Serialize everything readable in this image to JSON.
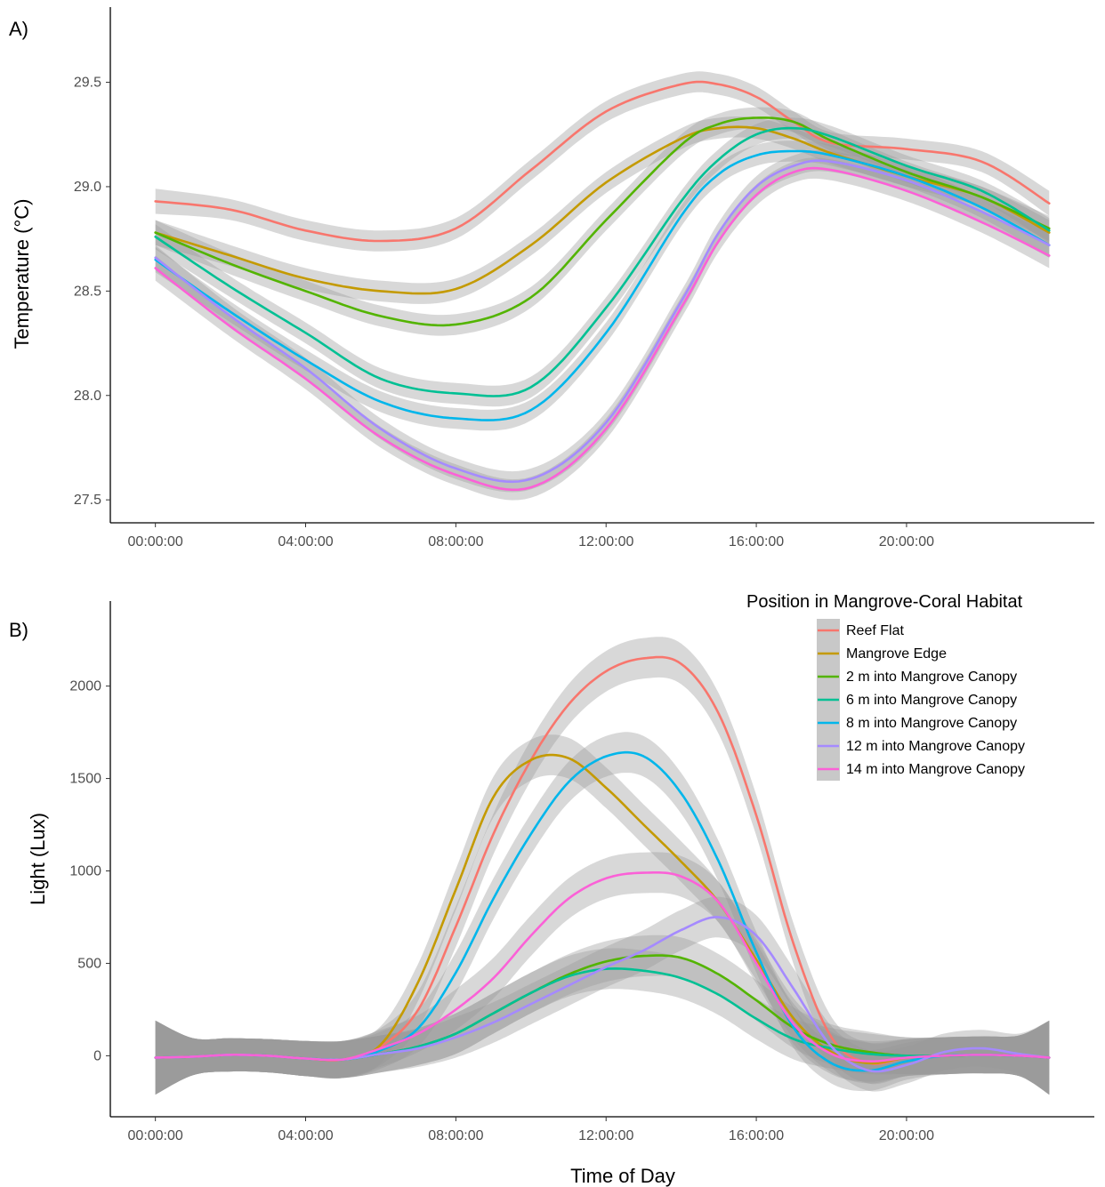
{
  "figure": {
    "x_title": "Time of Day",
    "legend": {
      "title": "Position in Mangrove-Coral Habitat",
      "placement": "top-right",
      "entries": [
        {
          "name": "Reef Flat",
          "color": "#F8766D"
        },
        {
          "name": "Mangrove Edge",
          "color": "#C49A00"
        },
        {
          "name": "2 m into Mangrove Canopy",
          "color": "#53B400"
        },
        {
          "name": "6 m into Mangrove Canopy",
          "color": "#00C094"
        },
        {
          "name": "8 m into Mangrove Canopy",
          "color": "#00B6EB"
        },
        {
          "name": "12 m into Mangrove Canopy",
          "color": "#A58AFF"
        },
        {
          "name": "14 m into Mangrove Canopy",
          "color": "#FB61D7"
        }
      ]
    }
  },
  "chart_data": [
    {
      "type": "line",
      "panel_label": "A)",
      "ylabel": "Temperature (°C)",
      "xlabel": "",
      "x_ticks": [
        "00:00:00",
        "04:00:00",
        "08:00:00",
        "12:00:00",
        "16:00:00",
        "20:00:00"
      ],
      "x_tick_hours": [
        0,
        4,
        8,
        12,
        16,
        20
      ],
      "y_ticks": [
        "27.5",
        "28.0",
        "28.5",
        "29.0",
        "29.5"
      ],
      "xlim": [
        -1.2,
        25.0
      ],
      "ylim": [
        27.39,
        29.86
      ],
      "grid": false,
      "x": [
        0,
        2,
        4,
        6,
        8,
        10,
        12,
        14,
        15,
        16,
        17,
        18,
        20,
        22,
        23.8
      ],
      "band_halfwidth": [
        0.06,
        0.05,
        0.05,
        0.05,
        0.05,
        0.05,
        0.05,
        0.05,
        0.05,
        0.05,
        0.05,
        0.05,
        0.05,
        0.05,
        0.06
      ],
      "series": [
        {
          "name": "Reef Flat",
          "color": "#F8766D",
          "values": [
            28.93,
            28.89,
            28.79,
            28.74,
            28.8,
            29.08,
            29.36,
            29.49,
            29.49,
            29.43,
            29.31,
            29.21,
            29.18,
            29.12,
            28.92
          ]
        },
        {
          "name": "Mangrove Edge",
          "color": "#C49A00",
          "values": [
            28.78,
            28.67,
            28.56,
            28.5,
            28.51,
            28.72,
            29.02,
            29.23,
            29.28,
            29.28,
            29.23,
            29.16,
            29.05,
            28.95,
            28.78
          ]
        },
        {
          "name": "2 m into Mangrove Canopy",
          "color": "#53B400",
          "values": [
            28.78,
            28.63,
            28.5,
            28.38,
            28.34,
            28.47,
            28.84,
            29.2,
            29.3,
            29.33,
            29.31,
            29.22,
            29.07,
            28.95,
            28.8
          ]
        },
        {
          "name": "6 m into Mangrove Canopy",
          "color": "#00C094",
          "values": [
            28.76,
            28.52,
            28.3,
            28.08,
            28.01,
            28.04,
            28.42,
            28.93,
            29.13,
            29.25,
            29.28,
            29.24,
            29.1,
            28.98,
            28.79
          ]
        },
        {
          "name": "8 m into Mangrove Canopy",
          "color": "#00B6EB",
          "values": [
            28.65,
            28.4,
            28.17,
            27.97,
            27.89,
            27.93,
            28.3,
            28.86,
            29.06,
            29.15,
            29.17,
            29.15,
            29.05,
            28.9,
            28.72
          ]
        },
        {
          "name": "12 m into Mangrove Canopy",
          "color": "#A58AFF",
          "values": [
            28.66,
            28.38,
            28.13,
            27.84,
            27.65,
            27.6,
            27.87,
            28.45,
            28.78,
            29.0,
            29.1,
            29.12,
            29.03,
            28.88,
            28.72
          ]
        },
        {
          "name": "14 m into Mangrove Canopy",
          "color": "#FB61D7",
          "values": [
            28.61,
            28.33,
            28.08,
            27.8,
            27.62,
            27.56,
            27.84,
            28.42,
            28.74,
            28.96,
            29.07,
            29.08,
            28.98,
            28.83,
            28.67
          ]
        }
      ]
    },
    {
      "type": "line",
      "panel_label": "B)",
      "ylabel": "Light (Lux)",
      "xlabel": "Time of Day",
      "x_ticks": [
        "00:00:00",
        "04:00:00",
        "08:00:00",
        "12:00:00",
        "16:00:00",
        "20:00:00"
      ],
      "x_tick_hours": [
        0,
        4,
        8,
        12,
        16,
        20
      ],
      "y_ticks": [
        "0",
        "500",
        "1000",
        "1500",
        "2000"
      ],
      "xlim": [
        -1.2,
        25.0
      ],
      "ylim": [
        -330,
        2460
      ],
      "grid": false,
      "x": [
        0,
        1,
        2,
        3,
        4,
        5,
        6,
        7,
        8,
        9,
        10,
        11,
        12,
        13,
        14,
        15,
        16,
        17,
        18,
        19,
        20,
        21,
        22,
        23,
        23.8
      ],
      "band_halfwidth": [
        200,
        100,
        90,
        90,
        95,
        100,
        100,
        100,
        110,
        110,
        110,
        110,
        110,
        110,
        110,
        110,
        110,
        110,
        110,
        110,
        100,
        100,
        100,
        110,
        200
      ],
      "series": [
        {
          "name": "Reef Flat",
          "color": "#F8766D",
          "values": [
            -10,
            -5,
            5,
            0,
            -15,
            -20,
            50,
            250,
            700,
            1200,
            1600,
            1900,
            2080,
            2150,
            2120,
            1850,
            1300,
            600,
            100,
            -40,
            -10,
            0,
            5,
            0,
            -10
          ]
        },
        {
          "name": "Mangrove Edge",
          "color": "#C49A00",
          "values": [
            -10,
            -5,
            5,
            0,
            -15,
            -20,
            60,
            400,
            900,
            1400,
            1600,
            1610,
            1450,
            1250,
            1050,
            830,
            520,
            200,
            20,
            -40,
            -10,
            0,
            5,
            0,
            -10
          ]
        },
        {
          "name": "2 m into Mangrove Canopy",
          "color": "#53B400",
          "values": [
            -10,
            -5,
            5,
            0,
            -15,
            -20,
            10,
            50,
            120,
            230,
            340,
            440,
            510,
            540,
            530,
            440,
            300,
            150,
            60,
            20,
            0,
            0,
            5,
            0,
            -10
          ]
        },
        {
          "name": "6 m into Mangrove Canopy",
          "color": "#00C094",
          "values": [
            -10,
            -5,
            5,
            0,
            -15,
            -20,
            10,
            50,
            120,
            230,
            340,
            430,
            470,
            460,
            420,
            330,
            200,
            90,
            40,
            10,
            0,
            0,
            5,
            0,
            -10
          ]
        },
        {
          "name": "8 m into Mangrove Canopy",
          "color": "#00B6EB",
          "values": [
            -10,
            -5,
            5,
            0,
            -15,
            -20,
            30,
            150,
            450,
            850,
            1200,
            1480,
            1620,
            1620,
            1420,
            1050,
            560,
            150,
            -40,
            -80,
            -30,
            0,
            5,
            0,
            -10
          ]
        },
        {
          "name": "12 m into Mangrove Canopy",
          "color": "#A58AFF",
          "values": [
            -10,
            -5,
            5,
            0,
            -15,
            -20,
            10,
            40,
            100,
            180,
            280,
            380,
            480,
            570,
            680,
            750,
            650,
            360,
            50,
            -80,
            -50,
            20,
            40,
            10,
            -10
          ]
        },
        {
          "name": "14 m into Mangrove Canopy",
          "color": "#FB61D7",
          "values": [
            -10,
            -5,
            5,
            0,
            -15,
            -20,
            40,
            120,
            250,
            420,
            650,
            850,
            960,
            990,
            970,
            830,
            500,
            170,
            10,
            -30,
            -10,
            0,
            5,
            0,
            -10
          ]
        }
      ]
    }
  ]
}
